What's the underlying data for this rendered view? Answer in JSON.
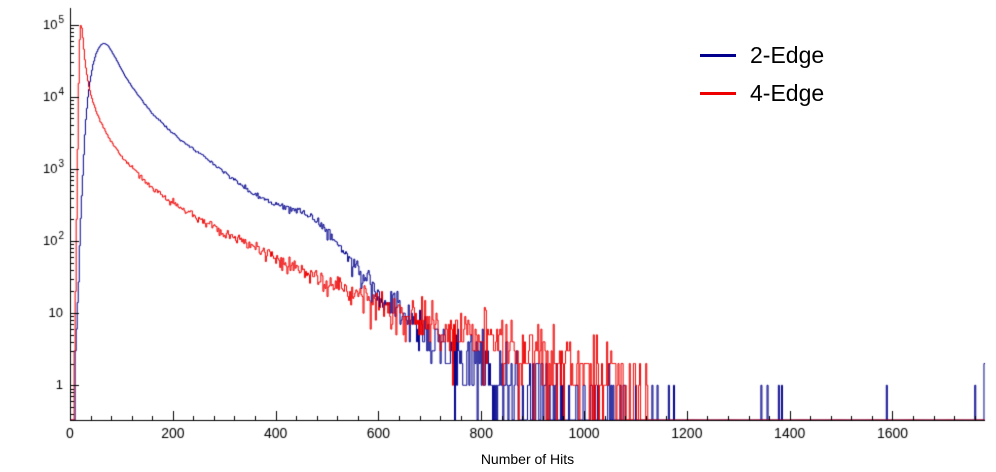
{
  "chart_data": {
    "type": "line",
    "subtype": "step-histogram",
    "title": "",
    "xlabel": "Number of Hits",
    "ylabel": "",
    "background": "#ffffff",
    "axis_color": "#000000",
    "grid": false,
    "x_axis": {
      "min": 0,
      "max": 1780,
      "major_ticks": [
        0,
        200,
        400,
        600,
        800,
        1000,
        1200,
        1400,
        1600
      ],
      "minor_step": 40
    },
    "y_axis": {
      "scale": "log",
      "min": 0.33,
      "max": 170000,
      "major_ticks": [
        1,
        10,
        100,
        1000,
        10000,
        100000
      ]
    },
    "legend": {
      "position": "top-right",
      "items": [
        {
          "label": "2-Edge",
          "color": "#00008c"
        },
        {
          "label": "4-Edge",
          "color": "#ee0000"
        }
      ]
    },
    "series": [
      {
        "name": "2-Edge",
        "color": "#00008c",
        "bin_width": 2,
        "seed": 1337,
        "envelope_points": [
          [
            6,
            0.2
          ],
          [
            10,
            1
          ],
          [
            14,
            8
          ],
          [
            18,
            60
          ],
          [
            22,
            300
          ],
          [
            26,
            1200
          ],
          [
            30,
            4000
          ],
          [
            35,
            10000
          ],
          [
            40,
            18000
          ],
          [
            45,
            28000
          ],
          [
            50,
            38000
          ],
          [
            55,
            46000
          ],
          [
            60,
            52000
          ],
          [
            65,
            55000
          ],
          [
            70,
            54000
          ],
          [
            75,
            50000
          ],
          [
            80,
            44000
          ],
          [
            90,
            33000
          ],
          [
            100,
            24000
          ],
          [
            110,
            18000
          ],
          [
            120,
            14000
          ],
          [
            135,
            10000
          ],
          [
            150,
            7200
          ],
          [
            165,
            5400
          ],
          [
            180,
            4300
          ],
          [
            200,
            3100
          ],
          [
            220,
            2400
          ],
          [
            240,
            1900
          ],
          [
            260,
            1500
          ],
          [
            280,
            1150
          ],
          [
            300,
            900
          ],
          [
            320,
            700
          ],
          [
            340,
            560
          ],
          [
            360,
            440
          ],
          [
            380,
            360
          ],
          [
            400,
            310
          ],
          [
            420,
            290
          ],
          [
            440,
            270
          ],
          [
            460,
            235
          ],
          [
            480,
            190
          ],
          [
            495,
            150
          ],
          [
            510,
            110
          ],
          [
            525,
            80
          ],
          [
            540,
            60
          ],
          [
            555,
            45
          ],
          [
            570,
            34
          ],
          [
            585,
            27
          ],
          [
            600,
            21
          ],
          [
            620,
            16
          ],
          [
            640,
            12
          ],
          [
            660,
            9
          ],
          [
            680,
            7
          ],
          [
            700,
            5.5
          ],
          [
            720,
            4.2
          ],
          [
            740,
            3.2
          ],
          [
            760,
            2.5
          ],
          [
            780,
            2
          ],
          [
            800,
            1.6
          ],
          [
            830,
            1.2
          ],
          [
            860,
            0.9
          ],
          [
            900,
            0.65
          ],
          [
            950,
            0.45
          ],
          [
            1000,
            0.35
          ],
          [
            1050,
            0.28
          ],
          [
            1100,
            0.22
          ],
          [
            1150,
            0.18
          ],
          [
            1200,
            0.15
          ],
          [
            1230,
            0.08
          ],
          [
            1238,
            0
          ]
        ],
        "extra_spikes": [
          [
            1345,
            1
          ],
          [
            1357,
            1
          ],
          [
            1378,
            1
          ],
          [
            1384,
            1
          ],
          [
            1588,
            1
          ],
          [
            1760,
            1
          ],
          [
            1778,
            2
          ]
        ]
      },
      {
        "name": "4-Edge",
        "color": "#ee0000",
        "bin_width": 2,
        "seed": 99,
        "envelope_points": [
          [
            6,
            0.3
          ],
          [
            9,
            3
          ],
          [
            12,
            60
          ],
          [
            14,
            600
          ],
          [
            16,
            6000
          ],
          [
            18,
            40000
          ],
          [
            20,
            95000
          ],
          [
            22,
            100000
          ],
          [
            24,
            80000
          ],
          [
            26,
            55000
          ],
          [
            28,
            38000
          ],
          [
            30,
            28000
          ],
          [
            34,
            18000
          ],
          [
            38,
            13000
          ],
          [
            42,
            10000
          ],
          [
            46,
            8000
          ],
          [
            50,
            6600
          ],
          [
            55,
            5300
          ],
          [
            60,
            4400
          ],
          [
            70,
            3200
          ],
          [
            80,
            2400
          ],
          [
            90,
            1900
          ],
          [
            100,
            1500
          ],
          [
            110,
            1250
          ],
          [
            120,
            1050
          ],
          [
            135,
            820
          ],
          [
            150,
            640
          ],
          [
            165,
            520
          ],
          [
            180,
            430
          ],
          [
            200,
            340
          ],
          [
            220,
            280
          ],
          [
            240,
            230
          ],
          [
            260,
            190
          ],
          [
            280,
            160
          ],
          [
            300,
            130
          ],
          [
            320,
            110
          ],
          [
            340,
            92
          ],
          [
            360,
            78
          ],
          [
            380,
            66
          ],
          [
            400,
            56
          ],
          [
            430,
            45
          ],
          [
            460,
            36
          ],
          [
            490,
            29
          ],
          [
            520,
            24
          ],
          [
            550,
            19
          ],
          [
            580,
            16
          ],
          [
            610,
            13
          ],
          [
            640,
            11
          ],
          [
            670,
            9
          ],
          [
            700,
            7.5
          ],
          [
            730,
            6.3
          ],
          [
            760,
            5.4
          ],
          [
            790,
            4.6
          ],
          [
            820,
            4
          ],
          [
            850,
            3.5
          ],
          [
            880,
            3
          ],
          [
            910,
            2.6
          ],
          [
            940,
            2.3
          ],
          [
            970,
            2
          ],
          [
            1000,
            1.8
          ],
          [
            1030,
            1.5
          ],
          [
            1060,
            1.3
          ],
          [
            1090,
            1.1
          ],
          [
            1115,
            0.9
          ],
          [
            1128,
            0.5
          ],
          [
            1134,
            0
          ]
        ],
        "extra_spikes": []
      }
    ]
  }
}
